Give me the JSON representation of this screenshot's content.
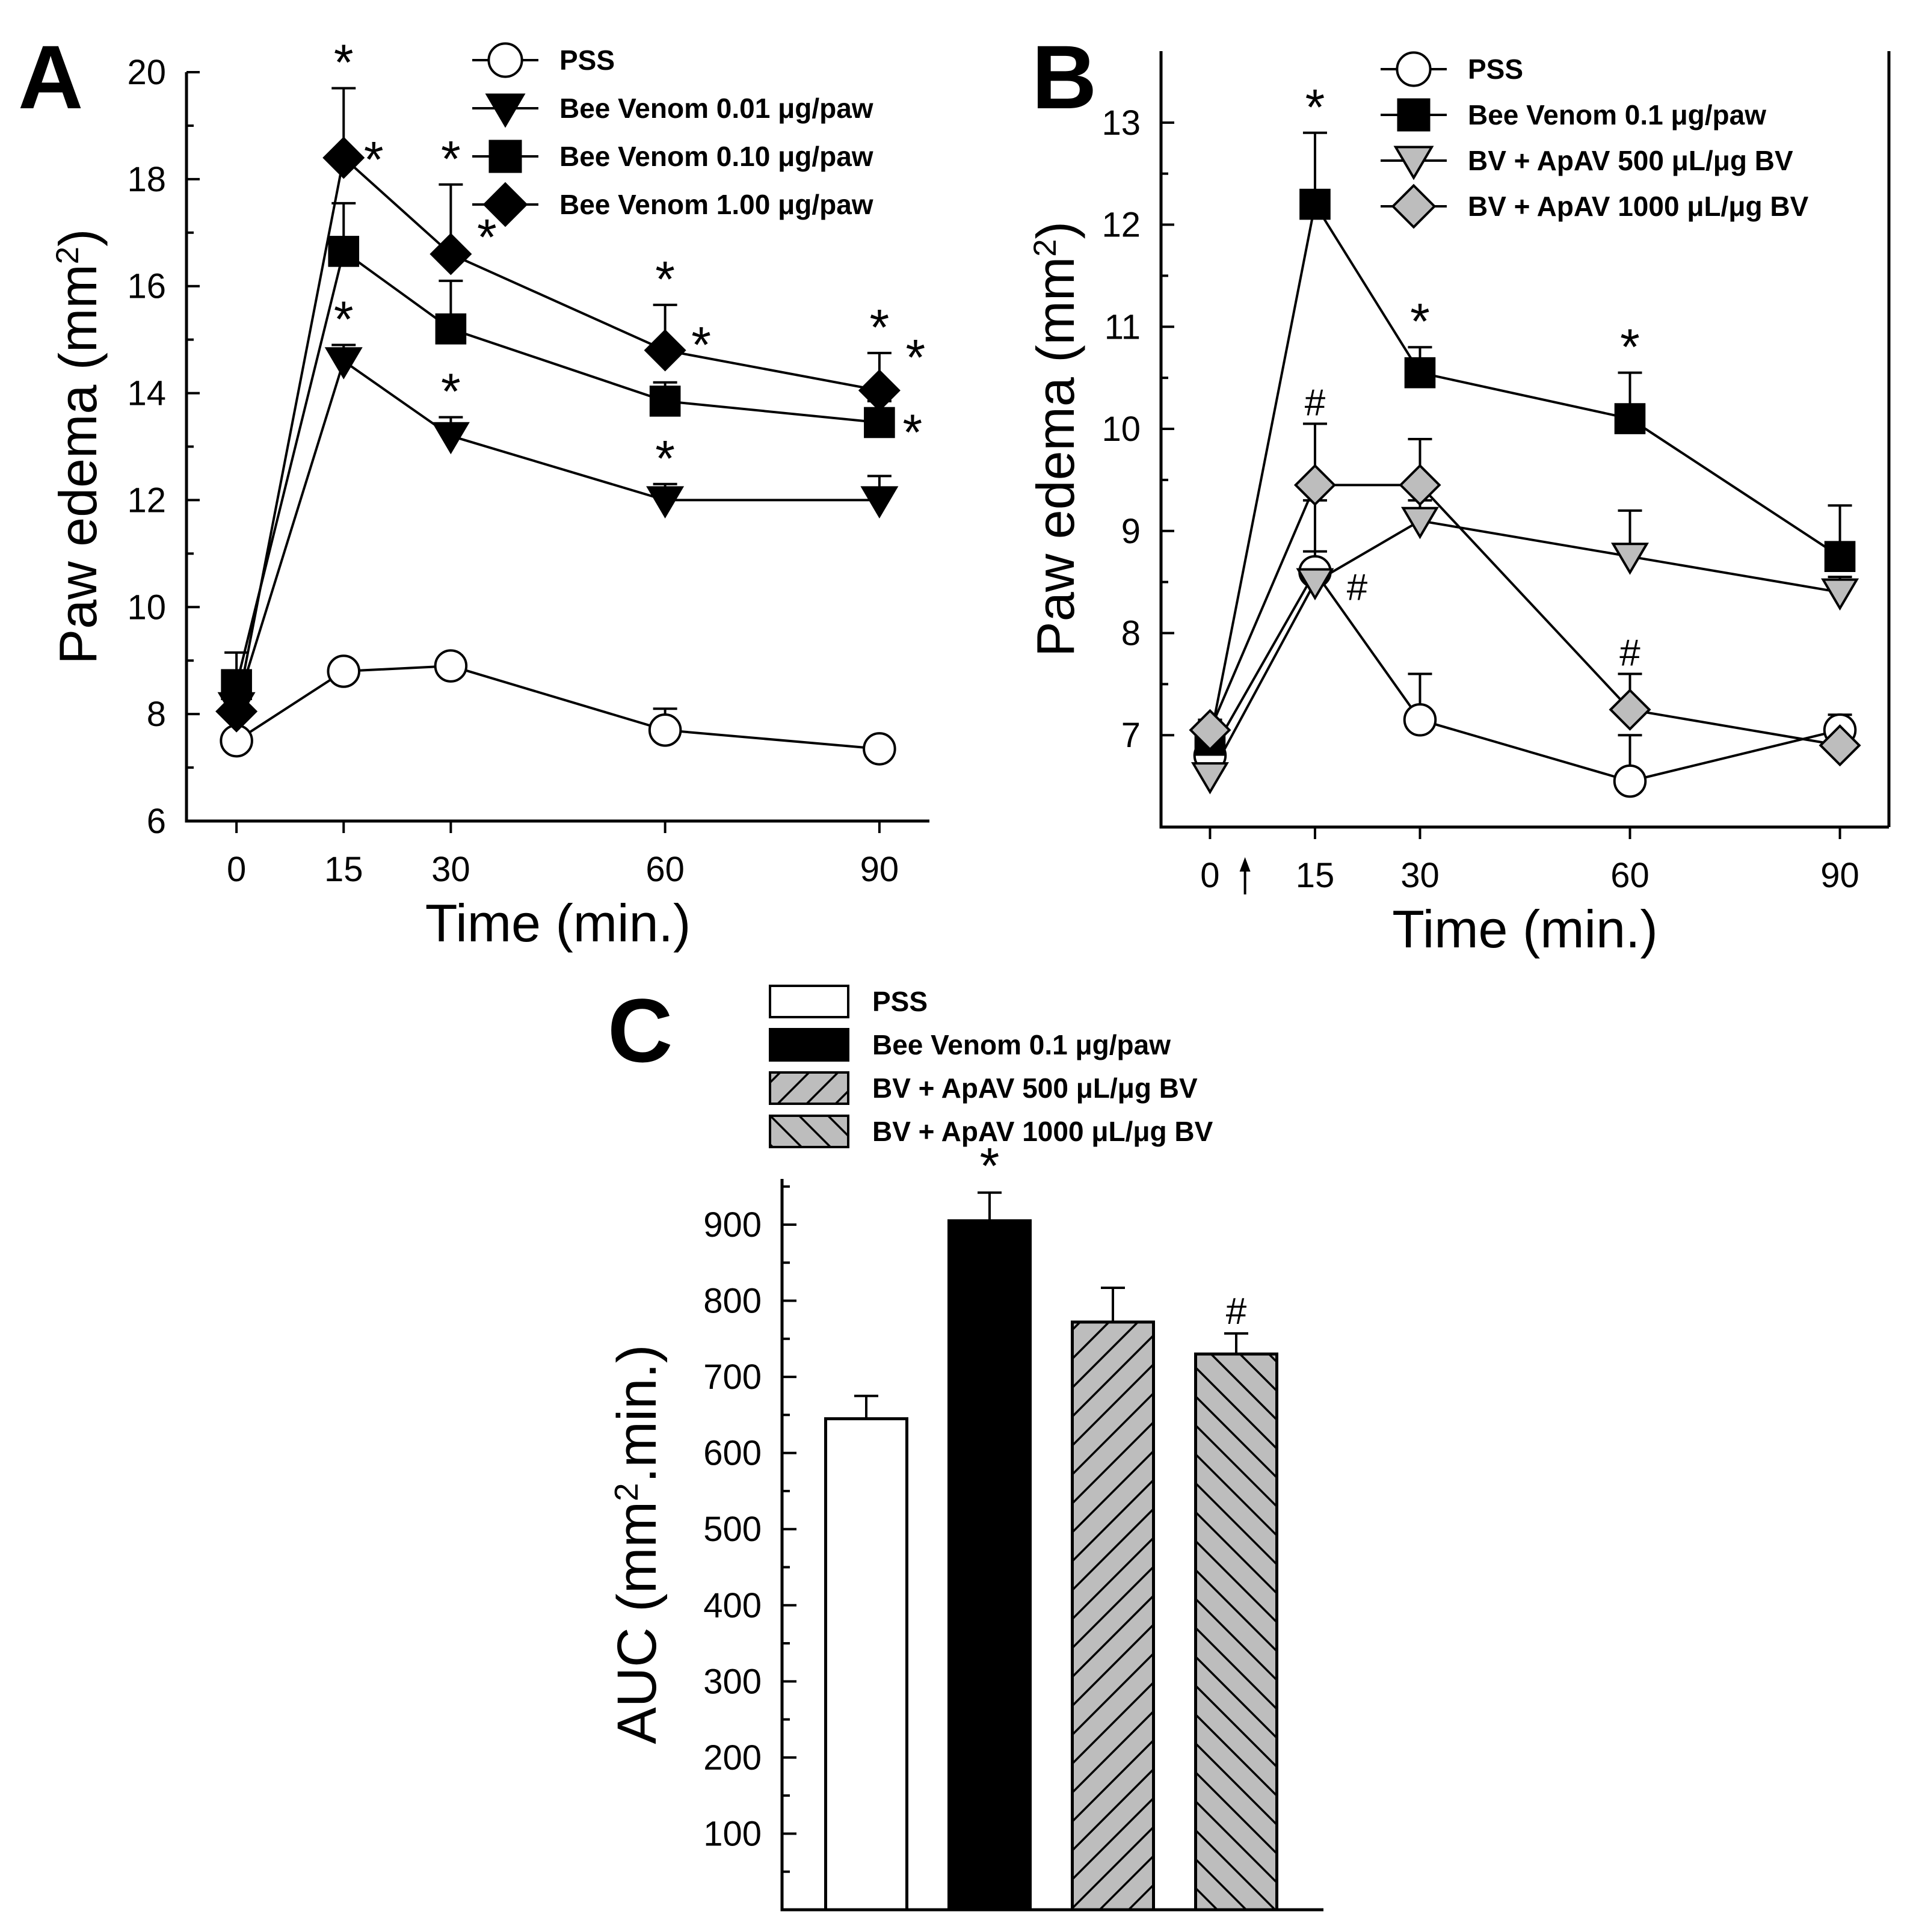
{
  "colors": {
    "black": "#000000",
    "white": "#ffffff",
    "gray": "#bdbdbd"
  },
  "chart_data": [
    {
      "panel": "A",
      "type": "line",
      "xlabel": "Time (min.)",
      "ylabel": "Paw edema (mm2)",
      "ylabel_main": "Paw edema (mm",
      "ylabel_sup": "2",
      "ylabel_end": ")",
      "x": [
        0,
        15,
        30,
        60,
        90
      ],
      "xticks": [
        "0",
        "15",
        "30",
        "60",
        "90"
      ],
      "xlim": [
        -7,
        97
      ],
      "ylim": [
        6,
        20
      ],
      "yticks": [
        6,
        8,
        10,
        12,
        14,
        16,
        18,
        20
      ],
      "series": [
        {
          "name": "PSS",
          "marker": "circle",
          "fill": "white",
          "values": [
            7.5,
            8.8,
            8.9,
            7.7,
            7.35
          ],
          "errors": [
            0.15,
            0.15,
            0.2,
            0.4,
            0.1
          ],
          "annotations": [
            "",
            "",
            "",
            "",
            ""
          ]
        },
        {
          "name": "Bee Venom 0.01 μg/paw",
          "marker": "triangle-down",
          "fill": "black",
          "values": [
            8.15,
            14.6,
            13.2,
            12.0,
            12.0
          ],
          "errors": [
            0.5,
            0.3,
            0.35,
            0.3,
            0.45
          ],
          "annotations": [
            "",
            "*",
            "*",
            "*",
            "*"
          ]
        },
        {
          "name": "Bee Venom 0.10 μg/paw",
          "marker": "square",
          "fill": "black",
          "values": [
            8.55,
            16.65,
            15.2,
            13.85,
            13.45
          ],
          "errors": [
            0.6,
            0.9,
            0.9,
            0.35,
            0.4
          ],
          "annotations": [
            "",
            "*",
            "*",
            "*",
            "*"
          ]
        },
        {
          "name": "Bee Venom 1.00 μg/paw",
          "marker": "diamond",
          "fill": "black",
          "values": [
            8.05,
            18.4,
            16.6,
            14.8,
            14.05
          ],
          "errors": [
            0.5,
            1.3,
            1.3,
            0.85,
            0.7
          ],
          "annotations": [
            "",
            "*",
            "*",
            "*",
            "*"
          ]
        }
      ]
    },
    {
      "panel": "B",
      "type": "line",
      "xlabel": "Time (min.)",
      "ylabel": "Paw edema (mm2)",
      "ylabel_main": "Paw edema (mm",
      "ylabel_sup": "2",
      "ylabel_end": ")",
      "x": [
        0,
        15,
        30,
        60,
        90
      ],
      "xticks": [
        "0",
        "15",
        "30",
        "60",
        "90"
      ],
      "xlim": [
        -7,
        97
      ],
      "ylim": [
        6.1,
        13.7
      ],
      "yticks": [
        7,
        8,
        9,
        10,
        11,
        12,
        13
      ],
      "arrow_x": 5,
      "series": [
        {
          "name": "PSS",
          "marker": "circle",
          "fill": "white",
          "values": [
            6.8,
            8.6,
            7.15,
            6.55,
            7.05
          ],
          "errors": [
            0.2,
            0.7,
            0.45,
            0.45,
            0.15
          ],
          "annotations": [
            "",
            "",
            "",
            "",
            ""
          ]
        },
        {
          "name": "Bee Venom 0.1 μg/paw",
          "marker": "square",
          "fill": "black",
          "values": [
            6.95,
            12.2,
            10.55,
            10.1,
            8.75
          ],
          "errors": [
            0.2,
            0.7,
            0.25,
            0.45,
            0.5
          ],
          "annotations": [
            "",
            "*",
            "*",
            "*",
            ""
          ]
        },
        {
          "name": "BV + ApAV 500 μL/μg BV",
          "marker": "triangle-down",
          "fill": "gray",
          "values": [
            6.6,
            8.5,
            9.1,
            8.75,
            8.4
          ],
          "errors": [
            0.1,
            0.3,
            0.2,
            0.45,
            0.15
          ],
          "annotations": [
            "",
            "#",
            "",
            "",
            ""
          ]
        },
        {
          "name": "BV + ApAV 1000 μL/μg BV",
          "marker": "diamond",
          "fill": "gray",
          "values": [
            7.05,
            9.45,
            9.45,
            7.25,
            6.9
          ],
          "errors": [
            0.1,
            0.6,
            0.45,
            0.35,
            0.1
          ],
          "annotations": [
            "",
            "#",
            "",
            "#",
            ""
          ]
        }
      ]
    },
    {
      "panel": "C",
      "type": "bar",
      "ylabel": "AUC (mm2.min.)",
      "ylabel_main": "AUC (mm",
      "ylabel_sup": "2",
      "ylabel_end": ".min.)",
      "ylim": [
        0,
        960
      ],
      "yticks": [
        100,
        200,
        300,
        400,
        500,
        600,
        700,
        800,
        900
      ],
      "categories": [
        "PSS",
        "Bee Venom 0.1 μg/paw",
        "BV + ApAV 500 μL/μg BV",
        "BV + ApAV 1000 μL/μg BV"
      ],
      "legend_labels": [
        "PSS",
        "Bee Venom 0.1 μg/paw",
        "BV + ApAV 500 μL/μg BV",
        "BV + ApAV 1000 μL/μg BV"
      ],
      "fills": [
        "white",
        "black",
        "hatch-up",
        "hatch-down"
      ],
      "values": [
        645,
        905,
        772,
        730
      ],
      "errors": [
        30,
        37,
        45,
        27
      ],
      "annotations": [
        "",
        "*",
        "",
        "#"
      ]
    }
  ]
}
